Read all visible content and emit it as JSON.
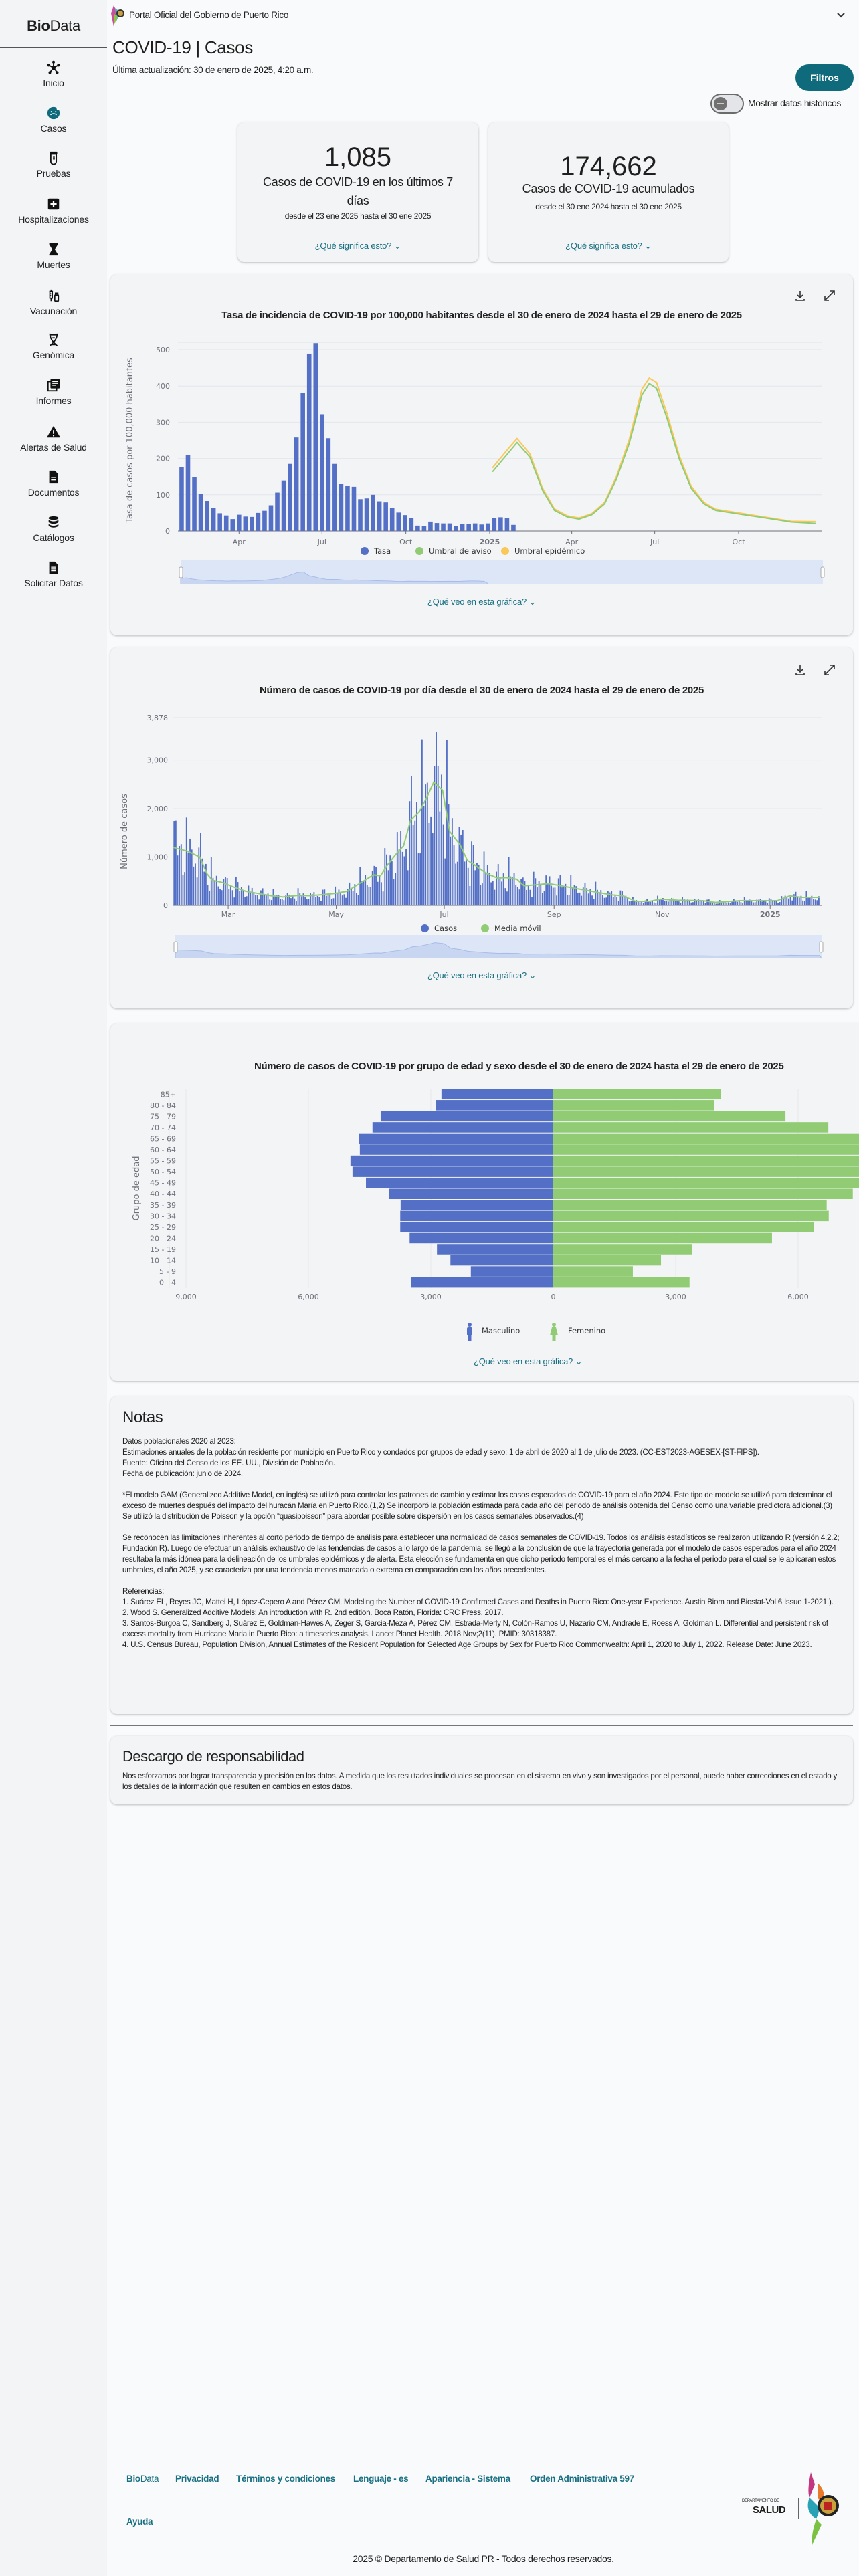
{
  "header": {
    "portal_label": "Portal Oficial del Gobierno de Puerto Rico"
  },
  "sidebar": {
    "brand_bold": "Bio",
    "brand_light": "Data",
    "items": [
      {
        "label": "Inicio",
        "icon": "network-icon"
      },
      {
        "label": "Casos",
        "icon": "virus-face-icon",
        "active": true
      },
      {
        "label": "Pruebas",
        "icon": "test-tube-icon"
      },
      {
        "label": "Hospitalizaciones",
        "icon": "hospital-plus-icon"
      },
      {
        "label": "Muertes",
        "icon": "hourglass-icon"
      },
      {
        "label": "Vacunación",
        "icon": "syringe-vial-icon"
      },
      {
        "label": "Genómica",
        "icon": "dna-icon"
      },
      {
        "label": "Informes",
        "icon": "reports-icon"
      },
      {
        "label": "Alertas de Salud",
        "icon": "warning-icon"
      },
      {
        "label": "Documentos",
        "icon": "document-icon"
      },
      {
        "label": "Catálogos",
        "icon": "database-icon"
      },
      {
        "label": "Solicitar Datos",
        "icon": "request-document-icon"
      }
    ]
  },
  "page": {
    "title": "COVID-19 | Casos",
    "last_updated": "Última actualización: 30 de enero de 2025, 4:20 a.m.",
    "filters_label": "Filtros",
    "historic_toggle_label": "Mostrar datos históricos",
    "historic_toggle_on": false,
    "accent": "#0f6a7c"
  },
  "stats": [
    {
      "value": "1,085",
      "label": "Casos de COVID-19 en los últimos 7 días",
      "range": "desde el 23 ene 2025 hasta el 30 ene 2025",
      "link": "¿Qué significa esto?"
    },
    {
      "value": "174,662",
      "label": "Casos de COVID-19 acumulados",
      "range": "desde el 30 ene 2024 hasta el 30 ene 2025",
      "link": "¿Qué significa esto?"
    }
  ],
  "chart_link": "¿Qué veo en esta gráfica?",
  "chart_data": [
    {
      "type": "bar",
      "title": "Tasa de incidencia de COVID-19 por 100,000 habitantes desde el 30 de enero de 2024 hasta el 29 de enero de 2025",
      "ylabel": "Tasa de casos por 100,000 habitantes",
      "ylim": [
        0,
        520
      ],
      "yticks": [
        0,
        100,
        200,
        300,
        400,
        500
      ],
      "xlim": [
        "2024-01-25",
        "2025-12-31"
      ],
      "xticks": [
        {
          "date": "2024-04-01",
          "label": "Apr"
        },
        {
          "date": "2024-07-01",
          "label": "Jul"
        },
        {
          "date": "2024-10-01",
          "label": "Oct"
        },
        {
          "date": "2025-01-01",
          "label": "2025",
          "bold": true
        },
        {
          "date": "2025-04-01",
          "label": "Apr"
        },
        {
          "date": "2025-07-01",
          "label": "Jul"
        },
        {
          "date": "2025-10-01",
          "label": "Oct"
        }
      ],
      "bar_start_date": "2024-01-29",
      "bar_interval_days": 7,
      "series": [
        {
          "name": "Tasa",
          "color": "#5470c6",
          "values": [
            177,
            210,
            149,
            103,
            83,
            64,
            49,
            43,
            33,
            45,
            40,
            39,
            50,
            56,
            71,
            106,
            139,
            185,
            258,
            381,
            489,
            518,
            322,
            256,
            185,
            130,
            125,
            122,
            88,
            90,
            100,
            82,
            79,
            63,
            51,
            44,
            36,
            15,
            14,
            26,
            22,
            21,
            21,
            14,
            20,
            20,
            21,
            18,
            21,
            36,
            38,
            35,
            17
          ]
        },
        {
          "name": "Umbral de aviso",
          "color": "#91cc75",
          "points": [
            [
              "2025-01-04",
              163
            ],
            [
              "2025-01-22",
              217
            ],
            [
              "2025-01-31",
              244
            ],
            [
              "2025-02-14",
              204
            ],
            [
              "2025-02-28",
              112
            ],
            [
              "2025-03-13",
              57
            ],
            [
              "2025-03-27",
              39
            ],
            [
              "2025-04-09",
              33
            ],
            [
              "2025-04-23",
              45
            ],
            [
              "2025-05-07",
              75
            ],
            [
              "2025-05-20",
              143
            ],
            [
              "2025-06-03",
              241
            ],
            [
              "2025-06-17",
              376
            ],
            [
              "2025-06-25",
              407
            ],
            [
              "2025-07-03",
              394
            ],
            [
              "2025-07-14",
              315
            ],
            [
              "2025-07-28",
              198
            ],
            [
              "2025-08-10",
              118
            ],
            [
              "2025-08-24",
              75
            ],
            [
              "2025-09-06",
              57
            ],
            [
              "2025-10-04",
              46
            ],
            [
              "2025-10-31",
              36
            ],
            [
              "2025-11-28",
              25
            ],
            [
              "2025-12-25",
              21
            ]
          ]
        },
        {
          "name": "Umbral epidémico",
          "color": "#fac858",
          "points": [
            [
              "2025-01-04",
              174
            ],
            [
              "2025-01-22",
              229
            ],
            [
              "2025-01-31",
              255
            ],
            [
              "2025-02-14",
              213
            ],
            [
              "2025-02-28",
              118
            ],
            [
              "2025-03-13",
              61
            ],
            [
              "2025-03-27",
              42
            ],
            [
              "2025-04-09",
              36
            ],
            [
              "2025-04-23",
              48
            ],
            [
              "2025-05-07",
              79
            ],
            [
              "2025-05-20",
              150
            ],
            [
              "2025-06-03",
              252
            ],
            [
              "2025-06-17",
              392
            ],
            [
              "2025-06-25",
              422
            ],
            [
              "2025-07-03",
              410
            ],
            [
              "2025-07-14",
              328
            ],
            [
              "2025-07-28",
              207
            ],
            [
              "2025-08-10",
              124
            ],
            [
              "2025-08-24",
              79
            ],
            [
              "2025-09-06",
              60
            ],
            [
              "2025-10-04",
              49
            ],
            [
              "2025-10-31",
              38
            ],
            [
              "2025-11-28",
              27
            ],
            [
              "2025-12-25",
              26
            ]
          ]
        }
      ],
      "legend": "bottom-center",
      "grid": true
    },
    {
      "type": "bar",
      "title": "Número de casos de COVID-19 por día desde el 30 de enero de 2024 hasta el 29 de enero de 2025",
      "ylabel": "Número de casos",
      "ylim": [
        0,
        3878
      ],
      "yticks": [
        {
          "v": 0,
          "label": "0"
        },
        {
          "v": 1000,
          "label": "1,000"
        },
        {
          "v": 2000,
          "label": "2,000"
        },
        {
          "v": 3000,
          "label": "3,000"
        },
        {
          "v": 3878,
          "label": "3,878"
        }
      ],
      "start_date": "2024-01-30",
      "days": 366,
      "xticks": [
        {
          "day": 31,
          "label": "Mar"
        },
        {
          "day": 92,
          "label": "May"
        },
        {
          "day": 153,
          "label": "Jul"
        },
        {
          "day": 215,
          "label": "Sep"
        },
        {
          "day": 276,
          "label": "Nov"
        },
        {
          "day": 337,
          "label": "2025",
          "bold": true
        }
      ],
      "series": [
        {
          "name": "Casos",
          "color": "#5470c6",
          "weekday_factors": [
            1.45,
            1.25,
            1.1,
            1.0,
            0.95,
            0.7,
            0.55
          ]
        },
        {
          "name": "Media móvil",
          "color": "#91cc75",
          "points": [
            [
              0,
              1200
            ],
            [
              8,
              1120
            ],
            [
              15,
              1000
            ],
            [
              19,
              656
            ],
            [
              22,
              520
            ],
            [
              28,
              470
            ],
            [
              34,
              380
            ],
            [
              41,
              290
            ],
            [
              48,
              245
            ],
            [
              55,
              200
            ],
            [
              62,
              175
            ],
            [
              70,
              205
            ],
            [
              77,
              200
            ],
            [
              84,
              220
            ],
            [
              91,
              245
            ],
            [
              98,
              290
            ],
            [
              106,
              470
            ],
            [
              113,
              630
            ],
            [
              117,
              610
            ],
            [
              121,
              840
            ],
            [
              126,
              1070
            ],
            [
              130,
              1230
            ],
            [
              134,
              1760
            ],
            [
              139,
              1940
            ],
            [
              143,
              2215
            ],
            [
              147,
              2540
            ],
            [
              152,
              2380
            ],
            [
              156,
              1530
            ],
            [
              162,
              1250
            ],
            [
              166,
              930
            ],
            [
              170,
              840
            ],
            [
              177,
              656
            ],
            [
              183,
              565
            ],
            [
              188,
              575
            ],
            [
              194,
              540
            ],
            [
              198,
              404
            ],
            [
              205,
              427
            ],
            [
              212,
              450
            ],
            [
              219,
              404
            ],
            [
              226,
              358
            ],
            [
              233,
              312
            ],
            [
              240,
              266
            ],
            [
              247,
              220
            ],
            [
              254,
              197
            ],
            [
              261,
              83
            ],
            [
              269,
              83
            ],
            [
              275,
              128
            ],
            [
              285,
              105
            ],
            [
              299,
              96
            ],
            [
              306,
              60
            ],
            [
              320,
              96
            ],
            [
              334,
              96
            ],
            [
              341,
              96
            ],
            [
              348,
              197
            ],
            [
              355,
              165
            ],
            [
              365,
              165
            ]
          ]
        }
      ],
      "legend": "bottom-center",
      "grid": true
    },
    {
      "type": "bar",
      "orientation": "horizontal-pyramid",
      "title": "Número de casos de COVID-19 por grupo de edad y sexo desde el 30 de enero de 2024 hasta el 29 de enero de 2025",
      "ylabel": "Grupo de edad",
      "categories": [
        "85+",
        "80 - 84",
        "75 - 79",
        "70 - 74",
        "65 - 69",
        "60 - 64",
        "55 - 59",
        "50 - 54",
        "45 - 49",
        "40 - 44",
        "35 - 39",
        "30 - 34",
        "25 - 29",
        "20 - 24",
        "15 - 19",
        "10 - 14",
        "5 - 9",
        "0 - 4"
      ],
      "xticks_left": [
        "9,000",
        "6,000",
        "3,000"
      ],
      "xticks_right": [
        "0",
        "3,000",
        "6,000"
      ],
      "series": [
        {
          "name": "Masculino",
          "color": "#5470c6",
          "values": [
            2740,
            2870,
            4230,
            4430,
            4770,
            4740,
            4970,
            4920,
            4590,
            4020,
            3740,
            3750,
            3750,
            3520,
            2850,
            2520,
            2020,
            3490
          ]
        },
        {
          "name": "Femenino",
          "color": "#91cc75",
          "values": [
            4100,
            3950,
            5690,
            6740,
            7900,
            8000,
            8300,
            8200,
            7800,
            7340,
            6700,
            6750,
            6380,
            5360,
            3410,
            2640,
            1950,
            3340
          ]
        }
      ],
      "legend": "bottom-center"
    }
  ],
  "notes": {
    "title": "Notas",
    "b1": [
      "Datos poblacionales 2020 al 2023:",
      "Estimaciones anuales de la población residente por municipio en Puerto Rico y condados por grupos de edad y sexo: 1 de abril de 2020 al 1 de julio de 2023. (CC-EST2023-AGESEX-[ST-FIPS]).",
      "Fuente: Oficina del Censo de los EE. UU., División de Población.",
      "Fecha de publicación: junio de 2024."
    ],
    "b2": "*El modelo GAM (Generalized Additive Model, en inglés) se utilizó para controlar los patrones de cambio y estimar los casos esperados de COVID-19 para el año 2024. Este tipo de modelo se utilizó para determinar el exceso de muertes después del impacto del huracán María en Puerto Rico.(1,2) Se incorporó la población estimada para cada año del periodo de análisis obtenida del Censo como una variable predictora adicional.(3) Se utilizó la distribución de Poisson y la opción “quasipoisson” para abordar posible sobre dispersión en los casos semanales observados.(4)",
    "b3": "Se reconocen las limitaciones inherentes al corto periodo de tiempo de análisis para establecer una normalidad de casos semanales de COVID-19. Todos los análisis estadísticos se realizaron utilizando R (versión 4.2.2; Fundación R). Luego de efectuar un análisis exhaustivo de las tendencias de casos a lo largo de la pandemia, se llegó a la conclusión de que la trayectoria generada por el modelo de casos esperados para el año 2024 resultaba la más idónea para la delineación de los umbrales epidémicos y de alerta. Esta elección se fundamenta en que dicho periodo temporal es el más cercano a la fecha el periodo para el cual se le aplicaran estos umbrales, el año 2025, y se caracteriza por una tendencia menos marcada o extrema en comparación con los años precedentes.",
    "refs_title": "Referencias:",
    "refs": [
      "1. Suárez EL, Reyes JC, Mattei H, López-Cepero A and Pérez CM. Modeling the Number of COVID-19 Confirmed Cases and Deaths in Puerto Rico: One-year Experience. Austin Biom and Biostat-Vol 6 Issue 1-2021.).",
      "2. Wood S. Generalized Additive Models: An introduction with R. 2nd edition. Boca Ratón, Florida: CRC Press, 2017.",
      "3. Santos-Burgoa C, Sandberg J, Suárez E, Goldman-Hawes A, Zeger S, Garcia-Meza A, Pérez CM, Estrada-Merly N, Colón-Ramos U, Nazario CM, Andrade E, Roess A, Goldman L. Differential and persistent risk of excess mortality from Hurricane Maria in Puerto Rico: a timeseries analysis. Lancet Planet Health. 2018 Nov;2(11). PMID: 30318387.",
      "4. U.S. Census Bureau, Population Division, Annual Estimates of the Resident Population for Selected Age Groups by Sex for Puerto Rico Commonwealth: April 1, 2020 to July 1, 2022. Release Date: June 2023."
    ]
  },
  "disclaimer": {
    "title": "Descargo de responsabilidad",
    "text": "Nos esforzamos por lograr transparencia y precisión en los datos. A medida que los resultados individuales se procesan en el sistema en vivo y son investigados por el personal, puede haber correcciones en el estado y los detalles de la información que resulten en cambios en estos datos."
  },
  "footer": {
    "brand_bold": "Bio",
    "brand_light": "Data",
    "links": [
      "Privacidad",
      "Términos y condiciones",
      "Lenguaje - es",
      "Apariencia - Sistema",
      "Orden Administrativa 597"
    ],
    "help": "Ayuda",
    "logo_small": "DEPARTAMENTO DE",
    "logo_big": "SALUD",
    "copyright": "2025 © Departamento de Salud PR - Todos derechos reservados."
  }
}
